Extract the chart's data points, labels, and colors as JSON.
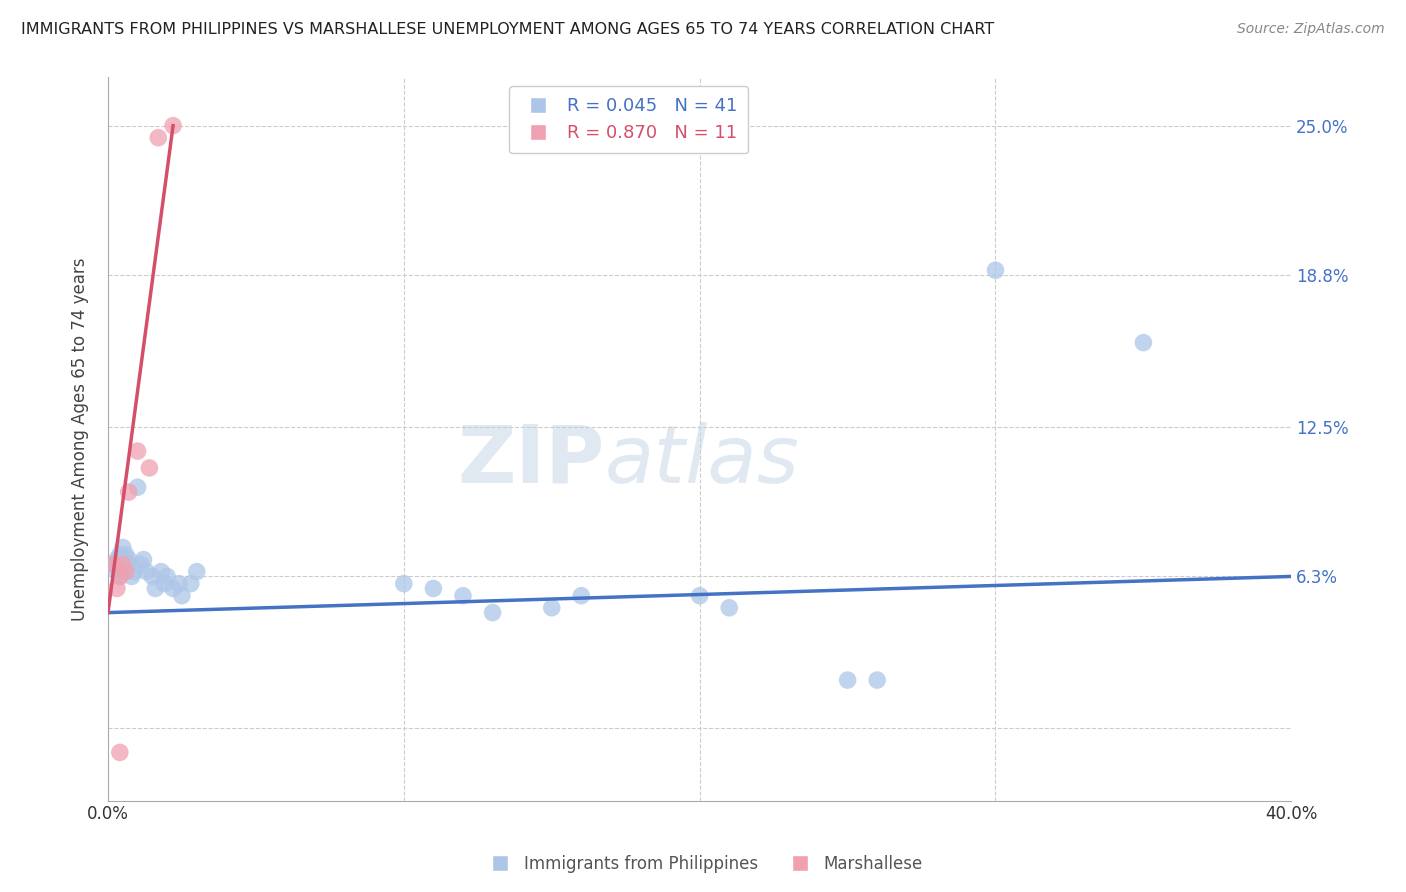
{
  "title": "IMMIGRANTS FROM PHILIPPINES VS MARSHALLESE UNEMPLOYMENT AMONG AGES 65 TO 74 YEARS CORRELATION CHART",
  "source": "Source: ZipAtlas.com",
  "ylabel": "Unemployment Among Ages 65 to 74 years",
  "right_yticks": [
    0.0,
    0.063,
    0.125,
    0.188,
    0.25
  ],
  "right_yticklabels": [
    "",
    "6.3%",
    "12.5%",
    "18.8%",
    "25.0%"
  ],
  "xmin": 0.0,
  "xmax": 0.4,
  "ymin": -0.03,
  "ymax": 0.27,
  "legend_blue_r": "R = 0.045",
  "legend_blue_n": "N = 41",
  "legend_pink_r": "R = 0.870",
  "legend_pink_n": "N = 11",
  "blue_color": "#adc6e8",
  "blue_line_color": "#4472c4",
  "pink_color": "#f0a0b0",
  "pink_line_color": "#d4506a",
  "legend_text_blue": "#4472c4",
  "legend_text_pink": "#d4506a",
  "watermark_zip": "ZIP",
  "watermark_atlas": "atlas",
  "blue_scatter_x": [
    0.002,
    0.003,
    0.003,
    0.004,
    0.004,
    0.004,
    0.005,
    0.005,
    0.005,
    0.006,
    0.006,
    0.007,
    0.007,
    0.008,
    0.009,
    0.01,
    0.011,
    0.012,
    0.013,
    0.015,
    0.016,
    0.018,
    0.019,
    0.02,
    0.022,
    0.024,
    0.025,
    0.028,
    0.03,
    0.1,
    0.11,
    0.12,
    0.13,
    0.15,
    0.16,
    0.2,
    0.21,
    0.25,
    0.26,
    0.3,
    0.35
  ],
  "blue_scatter_y": [
    0.068,
    0.07,
    0.065,
    0.072,
    0.068,
    0.063,
    0.075,
    0.07,
    0.065,
    0.072,
    0.065,
    0.07,
    0.068,
    0.063,
    0.065,
    0.1,
    0.068,
    0.07,
    0.065,
    0.063,
    0.058,
    0.065,
    0.06,
    0.063,
    0.058,
    0.06,
    0.055,
    0.06,
    0.065,
    0.06,
    0.058,
    0.055,
    0.048,
    0.05,
    0.055,
    0.055,
    0.05,
    0.02,
    0.02,
    0.19,
    0.16
  ],
  "pink_scatter_x": [
    0.002,
    0.003,
    0.004,
    0.004,
    0.005,
    0.006,
    0.007,
    0.01,
    0.014,
    0.017,
    0.022
  ],
  "pink_scatter_y": [
    0.068,
    0.058,
    0.063,
    -0.01,
    0.068,
    0.065,
    0.098,
    0.115,
    0.108,
    0.245,
    0.25
  ],
  "blue_trend_x": [
    0.0,
    0.4
  ],
  "blue_trend_y": [
    0.048,
    0.063
  ],
  "pink_trend_x": [
    0.0,
    0.022
  ],
  "pink_trend_y": [
    0.048,
    0.25
  ]
}
